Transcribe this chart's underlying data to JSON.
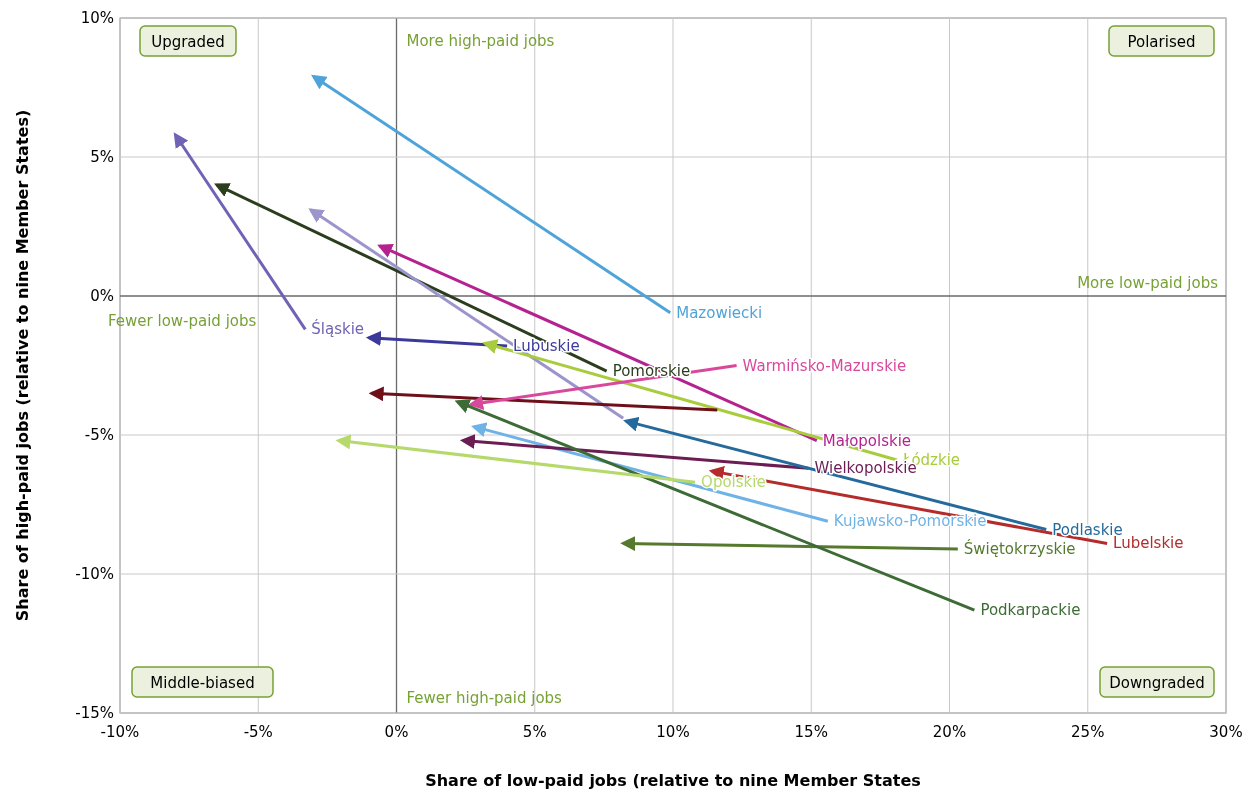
{
  "chart_data": {
    "type": "line",
    "xlabel": "Share of low-paid jobs (relative to nine Member States",
    "ylabel": "Share of high-paid jobs (relative to nine Member States)",
    "xlim": [
      -10,
      30
    ],
    "ylim": [
      -15,
      10
    ],
    "xticks": [
      {
        "value": -10,
        "label": "-10%"
      },
      {
        "value": -5,
        "label": "-5%"
      },
      {
        "value": 0,
        "label": "0%"
      },
      {
        "value": 5,
        "label": "5%"
      },
      {
        "value": 10,
        "label": "10%"
      },
      {
        "value": 15,
        "label": "15%"
      },
      {
        "value": 20,
        "label": "20%"
      },
      {
        "value": 25,
        "label": "25%"
      },
      {
        "value": 30,
        "label": "30%"
      }
    ],
    "yticks": [
      {
        "value": -15,
        "label": "-15%"
      },
      {
        "value": -10,
        "label": "-10%"
      },
      {
        "value": -5,
        "label": "-5%"
      },
      {
        "value": 0,
        "label": "0%"
      },
      {
        "value": 5,
        "label": "5%"
      },
      {
        "value": 10,
        "label": "10%"
      }
    ],
    "grid": true,
    "annotations": [
      "Upgraded",
      "Polarised",
      "Middle-biased",
      "Downgraded",
      "More high-paid jobs",
      "Fewer high-paid jobs",
      "Fewer low-paid jobs",
      "More low-paid jobs"
    ],
    "series": [
      {
        "name": "Mazowiecki",
        "color": "#4ea3d9",
        "x": [
          9.9,
          -3.0
        ],
        "values": [
          -0.6,
          7.9
        ]
      },
      {
        "name": "Śląskie",
        "color": "#6f63b5",
        "x": [
          -3.3,
          -8.0
        ],
        "values": [
          -1.2,
          5.8
        ]
      },
      {
        "name": "Pomorskie",
        "color": "#2a3d1c",
        "x": [
          7.6,
          -6.5
        ],
        "values": [
          -2.7,
          4.0
        ]
      },
      {
        "color": "#9b95cc",
        "x": [
          8.2,
          -3.1
        ],
        "values": [
          -4.4,
          3.1
        ]
      },
      {
        "name": "Małopolskie",
        "color": "#b5228f",
        "x": [
          15.2,
          -0.6
        ],
        "values": [
          -5.2,
          1.8
        ]
      },
      {
        "name": "Lubuskie",
        "color": "#3b3a9a",
        "x": [
          4.0,
          -1.0
        ],
        "values": [
          -1.8,
          -1.5
        ]
      },
      {
        "name": "Łódzkie",
        "color": "#a8cc3c",
        "x": [
          18.1,
          3.2
        ],
        "values": [
          -5.9,
          -1.7
        ]
      },
      {
        "color": "#6e0f1a",
        "x": [
          11.6,
          -0.9
        ],
        "values": [
          -4.1,
          -3.5
        ]
      },
      {
        "name": "Warmińsko-Mazurskie",
        "color": "#d9489c",
        "x": [
          12.3,
          2.7
        ],
        "values": [
          -2.5,
          -3.9
        ]
      },
      {
        "name": "Kujawsko-Pomorskie",
        "color": "#6fb3e6",
        "x": [
          15.6,
          2.8
        ],
        "values": [
          -8.1,
          -4.7
        ]
      },
      {
        "name": "Wielkopolskie",
        "color": "#6b1c52",
        "x": [
          14.9,
          2.4
        ],
        "values": [
          -6.2,
          -5.2
        ]
      },
      {
        "name": "Podlaskie",
        "color": "#246a9c",
        "x": [
          23.5,
          8.3
        ],
        "values": [
          -8.4,
          -4.5
        ]
      },
      {
        "name": "Lubelskie",
        "color": "#b52a2a",
        "x": [
          25.7,
          11.4
        ],
        "values": [
          -8.9,
          -6.3
        ]
      },
      {
        "name": "Świętokrzyskie",
        "color": "#557a2e",
        "x": [
          20.3,
          8.2
        ],
        "values": [
          -9.1,
          -8.9
        ]
      },
      {
        "name": "Podkarpackie",
        "color": "#3d6b35",
        "x": [
          20.9,
          2.2
        ],
        "values": [
          -11.3,
          -3.8
        ]
      },
      {
        "name": "Opolskie",
        "color": "#b5d96a",
        "x": [
          10.8,
          -2.1
        ],
        "values": [
          -6.7,
          -5.2
        ]
      }
    ]
  }
}
